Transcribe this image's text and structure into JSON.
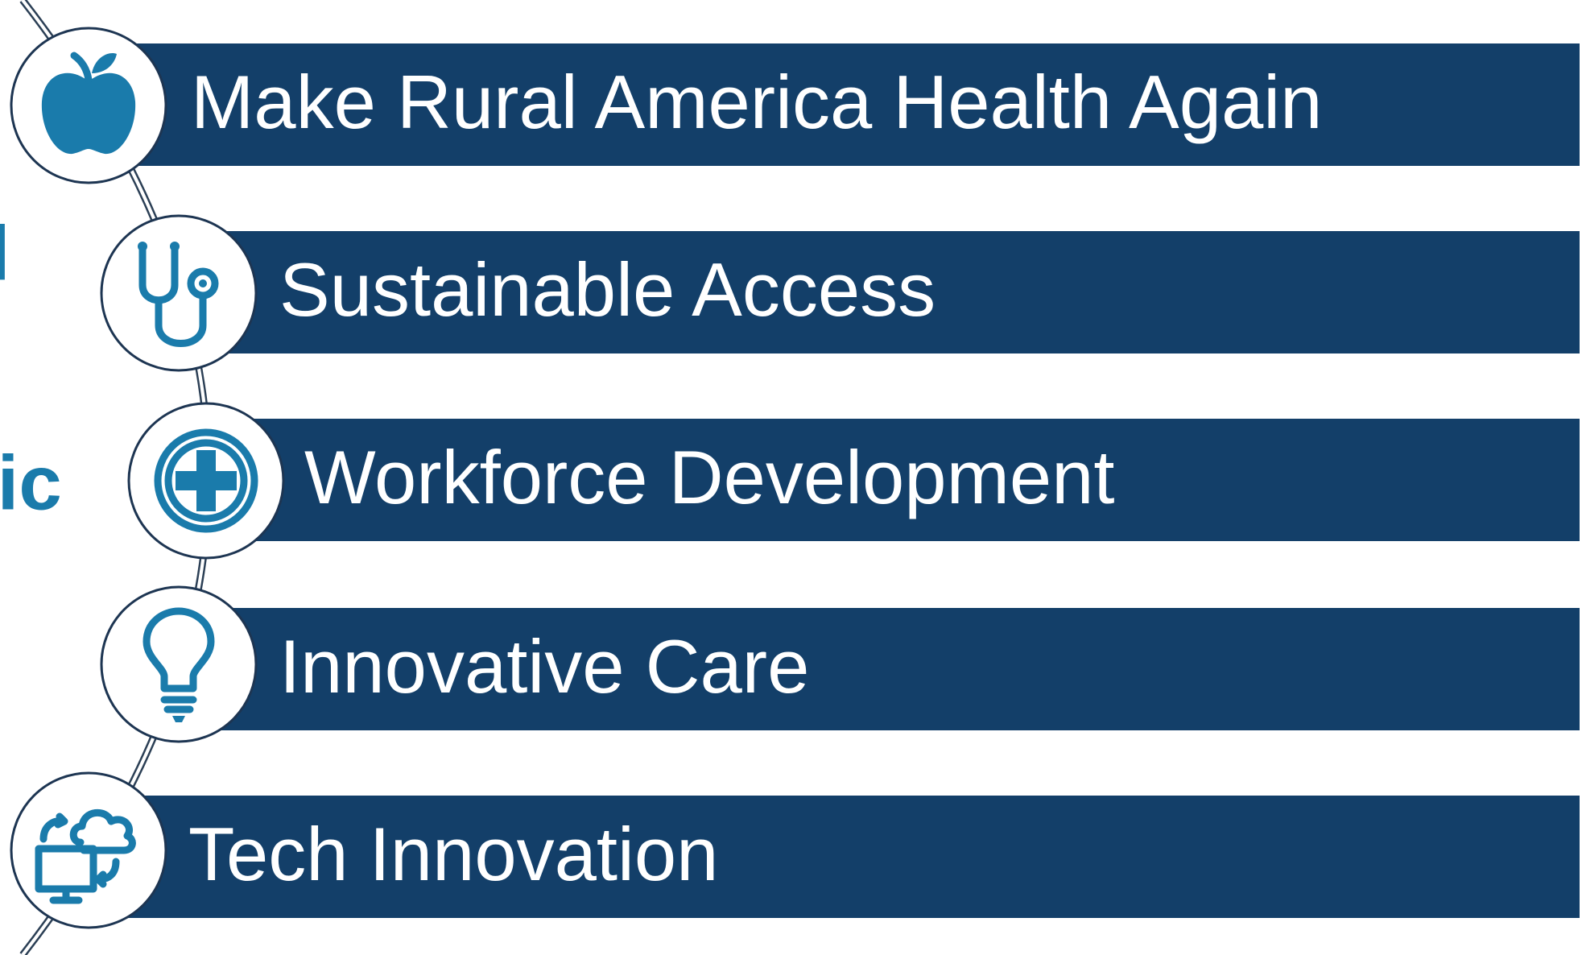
{
  "items": [
    {
      "label": "Make Rural America Health Again"
    },
    {
      "label": "Sustainable Access"
    },
    {
      "label": "Workforce Development"
    },
    {
      "label": "Innovative Care"
    },
    {
      "label": "Tech Innovation"
    }
  ],
  "side_text": [
    "l",
    "jic"
  ]
}
